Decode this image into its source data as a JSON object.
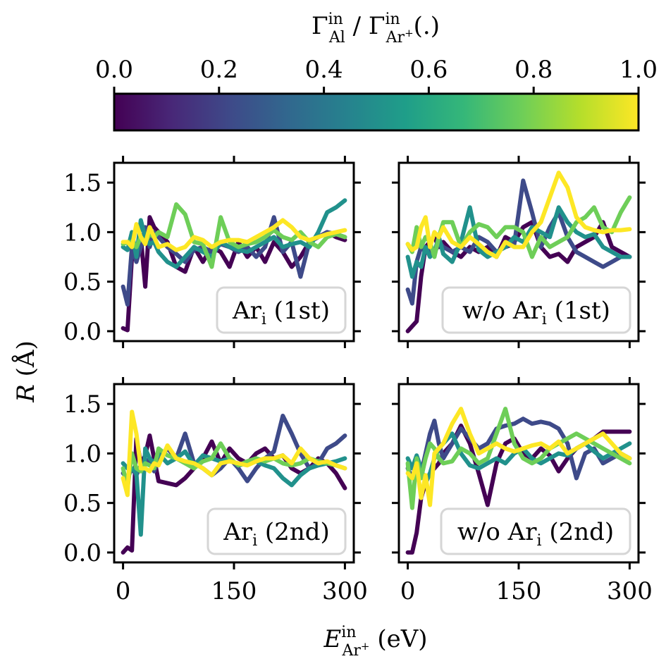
{
  "colorbar": {
    "label_main": "Γ",
    "label_sup_num": "in",
    "label_sub_num": "Al",
    "label_sep": " / ",
    "label_sub_den": "Ar",
    "label_sub_den_sup": "+",
    "label_unit": "(.)",
    "ticks": [
      "0.0",
      "0.2",
      "0.4",
      "0.6",
      "0.8",
      "1.0"
    ],
    "colormap": "viridis",
    "stops": [
      "#440154",
      "#482878",
      "#3e4a89",
      "#31688e",
      "#26828e",
      "#1f9e89",
      "#35b779",
      "#6ece58",
      "#b5de2b",
      "#fde725"
    ]
  },
  "axes": {
    "ylabel_main": "R",
    "ylabel_unit": "(Å)",
    "xlabel_main": "E",
    "xlabel_sup": "in",
    "xlabel_sub": "Ar",
    "xlabel_sub_sup": "+",
    "xlabel_unit": "(eV)"
  },
  "chart_data": [
    {
      "type": "line",
      "title": "Ari (1st)",
      "legend_main": "Ar",
      "legend_sub": "i",
      "legend_rest": " (1st)",
      "xlim": [
        -12,
        312
      ],
      "ylim": [
        -0.1,
        1.7
      ],
      "xticks": [
        "0",
        "150",
        "300"
      ],
      "xtick_values": [
        0,
        150,
        300
      ],
      "yticks": [
        "0.0",
        "0.5",
        "1.0",
        "1.5"
      ],
      "ytick_values": [
        0,
        0.5,
        1.0,
        1.5
      ],
      "x": [
        0,
        6,
        12,
        18,
        24,
        30,
        36,
        42,
        48,
        60,
        72,
        84,
        96,
        108,
        120,
        132,
        144,
        156,
        168,
        180,
        192,
        204,
        216,
        228,
        240,
        252,
        264,
        276,
        288,
        300
      ],
      "series": [
        {
          "ratio": 0.0,
          "color": "#440154",
          "values": [
            0.03,
            0.01,
            0.75,
            0.72,
            0.95,
            0.45,
            1.15,
            1.05,
            1.0,
            0.9,
            0.65,
            0.6,
            0.85,
            0.7,
            0.85,
            0.8,
            0.65,
            0.9,
            0.75,
            0.85,
            0.7,
            0.9,
            0.8,
            0.65,
            0.75,
            0.9,
            0.95,
            1.0,
            0.95,
            0.92
          ]
        },
        {
          "ratio": 0.25,
          "color": "#3e4a89",
          "values": [
            0.45,
            0.27,
            0.85,
            0.7,
            0.85,
            1.05,
            0.85,
            1.0,
            0.95,
            0.85,
            0.78,
            0.7,
            0.82,
            0.85,
            0.8,
            0.88,
            0.85,
            0.8,
            0.85,
            0.75,
            0.85,
            1.15,
            0.8,
            0.9,
            0.55,
            0.9,
            0.95,
            1.0,
            0.98,
            0.95
          ]
        },
        {
          "ratio": 0.5,
          "color": "#21918c",
          "values": [
            0.85,
            0.82,
            1.0,
            0.75,
            1.12,
            0.95,
            0.88,
            0.9,
            0.8,
            0.7,
            0.65,
            0.75,
            0.85,
            0.8,
            0.75,
            0.9,
            0.85,
            0.82,
            0.8,
            0.85,
            0.9,
            0.95,
            0.85,
            0.88,
            0.9,
            0.85,
            1.0,
            1.2,
            1.25,
            1.32
          ]
        },
        {
          "ratio": 0.75,
          "color": "#6ece58",
          "values": [
            0.88,
            0.9,
            0.9,
            0.85,
            0.95,
            0.9,
            0.98,
            0.95,
            1.0,
            0.95,
            1.28,
            1.18,
            0.9,
            0.88,
            0.65,
            1.15,
            0.9,
            0.85,
            0.88,
            0.9,
            0.95,
            1.02,
            0.95,
            0.92,
            1.0,
            0.9,
            0.85,
            0.95,
            0.98,
            0.95
          ]
        },
        {
          "ratio": 1.0,
          "color": "#fde725",
          "values": [
            0.9,
            0.9,
            0.85,
            1.08,
            0.95,
            0.88,
            1.05,
            0.95,
            0.85,
            0.88,
            0.82,
            0.85,
            0.95,
            0.92,
            0.85,
            0.9,
            0.92,
            0.92,
            0.9,
            0.95,
            1.0,
            1.05,
            1.12,
            1.05,
            0.95,
            0.92,
            0.95,
            0.98,
            1.0,
            1.02
          ]
        }
      ]
    },
    {
      "type": "line",
      "title": "w/o Ari (1st)",
      "legend_main": "w/o Ar",
      "legend_sub": "i",
      "legend_rest": " (1st)",
      "xlim": [
        -12,
        312
      ],
      "ylim": [
        -0.1,
        1.7
      ],
      "xticks": [
        "0",
        "150",
        "300"
      ],
      "xtick_values": [
        0,
        150,
        300
      ],
      "yticks": [
        "0.0",
        "0.5",
        "1.0",
        "1.5"
      ],
      "ytick_values": [
        0,
        0.5,
        1.0,
        1.5
      ],
      "x": [
        0,
        6,
        12,
        18,
        24,
        30,
        36,
        42,
        48,
        60,
        72,
        84,
        96,
        108,
        120,
        132,
        144,
        156,
        168,
        180,
        192,
        204,
        216,
        228,
        240,
        252,
        264,
        276,
        288,
        300
      ],
      "series": [
        {
          "ratio": 0.0,
          "color": "#440154",
          "values": [
            0.0,
            0.05,
            0.1,
            0.55,
            0.85,
            0.9,
            0.95,
            0.85,
            0.9,
            0.8,
            0.75,
            0.85,
            0.8,
            0.85,
            0.75,
            0.95,
            0.9,
            1.05,
            1.1,
            0.85,
            0.75,
            0.78,
            0.7,
            0.85,
            0.9,
            0.95,
            1.1,
            0.85,
            0.8,
            0.75
          ]
        },
        {
          "ratio": 0.25,
          "color": "#3e4a89",
          "values": [
            0.42,
            0.28,
            0.7,
            0.85,
            0.8,
            0.82,
            0.78,
            0.9,
            0.85,
            0.8,
            0.85,
            0.8,
            0.95,
            0.9,
            0.8,
            0.85,
            0.88,
            1.52,
            1.2,
            0.85,
            1.05,
            1.2,
            0.95,
            0.8,
            0.75,
            0.7,
            0.65,
            0.7,
            0.75,
            0.75
          ]
        },
        {
          "ratio": 0.5,
          "color": "#21918c",
          "values": [
            0.75,
            0.55,
            0.7,
            0.65,
            0.85,
            0.75,
            0.8,
            0.95,
            0.78,
            0.7,
            0.9,
            1.25,
            0.82,
            0.75,
            0.8,
            0.85,
            0.95,
            0.9,
            1.05,
            1.0,
            0.95,
            1.25,
            1.1,
            1.0,
            0.95,
            0.98,
            0.85,
            0.8,
            0.75,
            0.75
          ]
        },
        {
          "ratio": 0.75,
          "color": "#6ece58",
          "values": [
            0.88,
            0.8,
            1.05,
            0.85,
            0.95,
            0.9,
            0.75,
            0.95,
            1.1,
            1.1,
            0.85,
            1.0,
            1.08,
            1.05,
            0.95,
            1.05,
            1.05,
            1.0,
            0.75,
            0.95,
            0.85,
            0.9,
            0.95,
            1.1,
            1.15,
            1.25,
            1.05,
            1.0,
            1.2,
            1.35
          ]
        },
        {
          "ratio": 1.0,
          "color": "#fde725",
          "values": [
            0.88,
            0.82,
            0.85,
            1.05,
            1.15,
            0.85,
            1.0,
            0.95,
            1.05,
            0.9,
            0.85,
            0.95,
            0.88,
            0.8,
            0.75,
            0.9,
            0.85,
            0.85,
            1.0,
            1.1,
            1.35,
            1.6,
            1.45,
            1.15,
            1.05,
            1.02,
            1.0,
            1.02,
            1.02,
            1.03
          ]
        }
      ]
    },
    {
      "type": "line",
      "title": "Ari (2nd)",
      "legend_main": "Ar",
      "legend_sub": "i",
      "legend_rest": " (2nd)",
      "xlim": [
        -12,
        312
      ],
      "ylim": [
        -0.1,
        1.7
      ],
      "xticks": [
        "0",
        "150",
        "300"
      ],
      "xtick_values": [
        0,
        150,
        300
      ],
      "yticks": [
        "0.0",
        "0.5",
        "1.0",
        "1.5"
      ],
      "ytick_values": [
        0,
        0.5,
        1.0,
        1.5
      ],
      "x": [
        0,
        6,
        12,
        18,
        24,
        30,
        36,
        42,
        48,
        60,
        72,
        84,
        96,
        108,
        120,
        132,
        144,
        156,
        168,
        180,
        192,
        204,
        216,
        228,
        240,
        252,
        264,
        276,
        288,
        300
      ],
      "series": [
        {
          "ratio": 0.0,
          "color": "#440154",
          "values": [
            0.0,
            0.05,
            0.02,
            1.15,
            0.9,
            0.98,
            1.18,
            0.95,
            0.72,
            0.7,
            0.68,
            0.75,
            0.85,
            0.95,
            1.12,
            0.9,
            1.05,
            0.95,
            0.9,
            1.0,
            1.05,
            0.95,
            0.98,
            0.85,
            0.8,
            0.85,
            0.95,
            0.9,
            0.8,
            0.65
          ]
        },
        {
          "ratio": 0.25,
          "color": "#3e4a89",
          "values": [
            0.8,
            0.75,
            0.85,
            0.78,
            0.88,
            0.9,
            0.95,
            0.82,
            0.95,
            1.05,
            0.95,
            1.2,
            0.9,
            0.85,
            0.78,
            0.85,
            0.95,
            0.85,
            0.72,
            0.85,
            0.95,
            1.02,
            1.38,
            1.2,
            1.0,
            0.85,
            0.9,
            1.05,
            1.1,
            1.18
          ]
        },
        {
          "ratio": 0.5,
          "color": "#21918c",
          "values": [
            0.9,
            0.85,
            0.85,
            0.8,
            0.18,
            1.05,
            0.95,
            0.9,
            1.0,
            0.9,
            0.95,
            1.02,
            0.88,
            0.98,
            0.95,
            0.92,
            0.95,
            0.88,
            0.9,
            0.92,
            0.88,
            0.85,
            0.75,
            0.68,
            0.78,
            0.85,
            0.88,
            0.9,
            0.92,
            0.95
          ]
        },
        {
          "ratio": 0.75,
          "color": "#6ece58",
          "values": [
            0.85,
            0.65,
            1.0,
            0.85,
            0.82,
            0.9,
            0.88,
            0.85,
            1.05,
            0.98,
            0.95,
            0.9,
            0.85,
            0.92,
            0.95,
            1.1,
            0.95,
            0.88,
            0.92,
            0.95,
            0.92,
            0.95,
            0.9,
            0.88,
            0.9,
            0.95,
            0.92,
            0.9,
            0.88,
            0.85
          ]
        },
        {
          "ratio": 1.0,
          "color": "#fde725",
          "values": [
            0.75,
            0.58,
            1.42,
            1.2,
            0.85,
            0.85,
            0.82,
            0.9,
            0.88,
            1.08,
            0.95,
            0.92,
            0.9,
            0.85,
            0.78,
            0.9,
            0.92,
            0.9,
            0.88,
            0.92,
            0.95,
            0.95,
            0.98,
            0.9,
            1.05,
            0.95,
            0.9,
            0.92,
            0.88,
            0.85
          ]
        }
      ]
    },
    {
      "type": "line",
      "title": "w/o Ari (2nd)",
      "legend_main": "w/o Ar",
      "legend_sub": "i",
      "legend_rest": " (2nd)",
      "xlim": [
        -12,
        312
      ],
      "ylim": [
        -0.1,
        1.7
      ],
      "xticks": [
        "0",
        "150",
        "300"
      ],
      "xtick_values": [
        0,
        150,
        300
      ],
      "yticks": [
        "0.0",
        "0.5",
        "1.0",
        "1.5"
      ],
      "ytick_values": [
        0,
        0.5,
        1.0,
        1.5
      ],
      "x": [
        0,
        6,
        12,
        18,
        24,
        30,
        36,
        42,
        48,
        60,
        72,
        84,
        96,
        108,
        120,
        132,
        144,
        156,
        168,
        180,
        192,
        204,
        216,
        228,
        240,
        252,
        264,
        276,
        288,
        300
      ],
      "series": [
        {
          "ratio": 0.0,
          "color": "#440154",
          "values": [
            0.0,
            0.0,
            0.2,
            0.55,
            0.7,
            0.8,
            0.85,
            0.9,
            1.0,
            1.1,
            1.28,
            1.1,
            0.8,
            0.48,
            0.9,
            1.1,
            1.15,
            1.0,
            0.95,
            1.05,
            0.98,
            0.82,
            0.95,
            1.05,
            1.1,
            1.15,
            1.22,
            1.22,
            1.22,
            1.22
          ]
        },
        {
          "ratio": 0.25,
          "color": "#3e4a89",
          "values": [
            0.85,
            0.75,
            0.9,
            0.8,
            1.0,
            1.2,
            1.33,
            1.1,
            0.95,
            1.1,
            1.25,
            1.15,
            1.05,
            1.1,
            1.25,
            1.28,
            1.3,
            1.35,
            1.3,
            1.32,
            1.3,
            1.25,
            1.1,
            0.75,
            1.0,
            1.05,
            0.9,
            0.95,
            1.0,
            0.95
          ]
        },
        {
          "ratio": 0.5,
          "color": "#21918c",
          "values": [
            0.95,
            0.85,
            0.98,
            0.85,
            0.7,
            0.8,
            0.95,
            1.05,
            1.1,
            1.2,
            1.0,
            0.88,
            0.85,
            0.9,
            0.95,
            0.9,
            1.0,
            1.05,
            0.95,
            0.9,
            0.95,
            1.0,
            0.98,
            1.05,
            1.1,
            1.02,
            0.95,
            1.0,
            1.05,
            1.1
          ]
        },
        {
          "ratio": 0.75,
          "color": "#6ece58",
          "values": [
            0.9,
            0.45,
            0.95,
            0.75,
            0.95,
            1.1,
            1.05,
            0.95,
            0.9,
            0.92,
            1.05,
            1.0,
            0.9,
            0.95,
            1.2,
            1.45,
            1.1,
            0.95,
            0.9,
            0.95,
            1.05,
            1.1,
            1.15,
            1.2,
            1.15,
            1.1,
            1.05,
            1.0,
            0.95,
            0.9
          ]
        },
        {
          "ratio": 1.0,
          "color": "#fde725",
          "values": [
            0.8,
            0.75,
            0.9,
            0.55,
            0.78,
            0.48,
            1.0,
            1.05,
            1.1,
            1.3,
            1.45,
            1.2,
            1.0,
            1.05,
            1.1,
            1.05,
            1.02,
            1.05,
            1.08,
            1.1,
            1.05,
            1.12,
            1.0,
            1.05,
            1.1,
            1.15,
            1.2,
            1.1,
            1.0,
            0.95
          ]
        }
      ]
    }
  ]
}
